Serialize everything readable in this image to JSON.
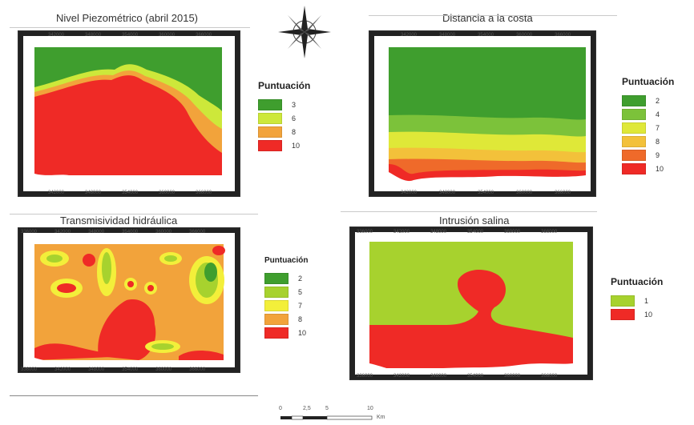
{
  "colors": {
    "green": "#3f9e2e",
    "yellowgreen": "#a7d22e",
    "lime": "#cde83a",
    "yellow": "#f3ef3a",
    "orange": "#f2a33b",
    "darkorange": "#ef6a2a",
    "red": "#ef2a26"
  },
  "maps": [
    {
      "title": "Nivel Piezométrico (abril 2015)",
      "ticks_x": [
        "342000",
        "348000",
        "354000",
        "360000",
        "366000"
      ],
      "legend_title": "Puntuación",
      "legend": [
        {
          "label": "3",
          "color": "#3f9e2e"
        },
        {
          "label": "6",
          "color": "#cde83a"
        },
        {
          "label": "8",
          "color": "#f2a33b"
        },
        {
          "label": "10",
          "color": "#ef2a26"
        }
      ]
    },
    {
      "title": "Distancia a la costa",
      "ticks_x": [
        "342000",
        "348000",
        "354000",
        "360000",
        "366000"
      ],
      "legend_title": "Puntuación",
      "legend": [
        {
          "label": "2",
          "color": "#3f9e2e"
        },
        {
          "label": "4",
          "color": "#7cc23a"
        },
        {
          "label": "7",
          "color": "#dfe838"
        },
        {
          "label": "8",
          "color": "#f3c13a"
        },
        {
          "label": "9",
          "color": "#ef6a2a"
        },
        {
          "label": "10",
          "color": "#ef2a26"
        }
      ]
    },
    {
      "title": "Transmisividad hidráulica",
      "ticks_x": [
        "336000",
        "342000",
        "348000",
        "354000",
        "360000",
        "366000"
      ],
      "legend_title": "Puntuación",
      "legend": [
        {
          "label": "2",
          "color": "#3f9e2e"
        },
        {
          "label": "5",
          "color": "#a7d22e"
        },
        {
          "label": "7",
          "color": "#f3ef3a"
        },
        {
          "label": "8",
          "color": "#f2a33b"
        },
        {
          "label": "10",
          "color": "#ef2a26"
        }
      ]
    },
    {
      "title": "Intrusión salina",
      "ticks_x": [
        "336000",
        "342000",
        "348000",
        "354000",
        "360000",
        "366000"
      ],
      "legend_title": "Puntuación",
      "legend": [
        {
          "label": "1",
          "color": "#a7d22e"
        },
        {
          "label": "10",
          "color": "#ef2a26"
        }
      ]
    }
  ],
  "scalebar": {
    "labels": [
      "0",
      "2,5",
      "5",
      "10"
    ],
    "unit": "Km"
  },
  "compass": {
    "icon": "compass-rose-icon"
  }
}
